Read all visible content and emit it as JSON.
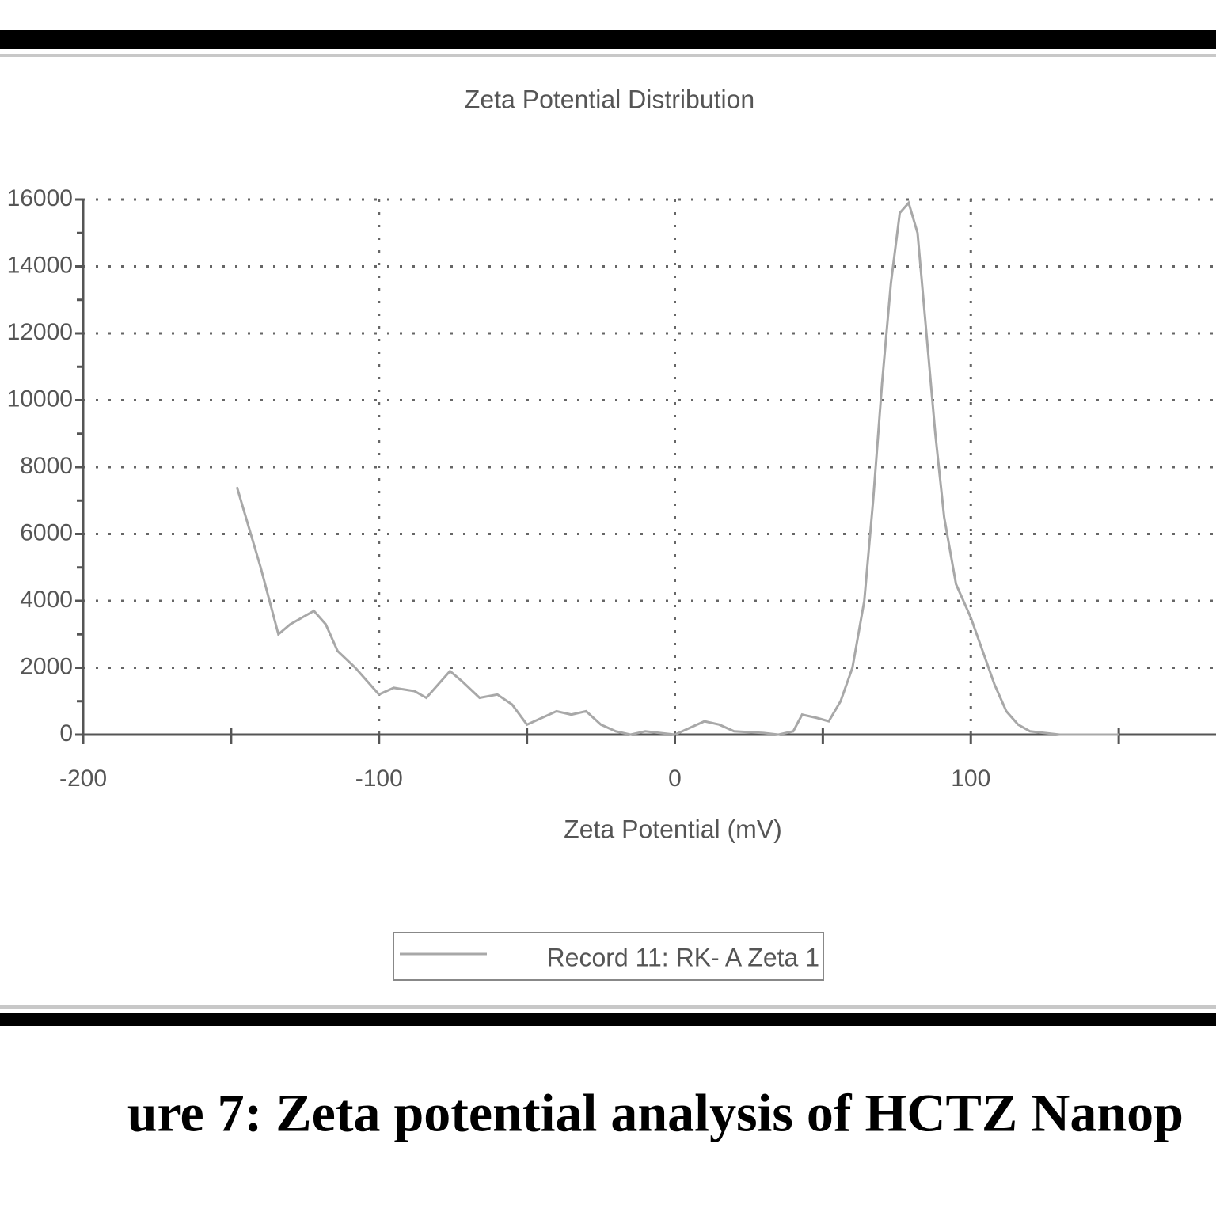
{
  "chart_data": {
    "type": "line",
    "title": "Zeta Potential Distribution",
    "x_label": "Zeta Potential (mV)",
    "x": [
      -148,
      -140,
      -134,
      -130,
      -126,
      -122,
      -118,
      -114,
      -108,
      -100,
      -95,
      -88,
      -84,
      -76,
      -72,
      -66,
      -60,
      -55,
      -50,
      -45,
      -40,
      -35,
      -30,
      -25,
      -20,
      -15,
      -10,
      -5,
      0,
      5,
      10,
      15,
      20,
      30,
      35,
      40,
      43,
      48,
      52,
      56,
      60,
      64,
      67,
      70,
      73,
      76,
      79,
      82,
      85,
      88,
      91,
      95,
      100,
      104,
      108,
      112,
      116,
      120,
      125,
      130,
      150
    ],
    "series": [
      {
        "name": "Record 11: RK- A Zeta 1",
        "color": "#a8a8a8",
        "values": [
          7400,
          5000,
          3000,
          3300,
          3500,
          3700,
          3300,
          2500,
          2000,
          1200,
          1400,
          1300,
          1100,
          1900,
          1600,
          1100,
          1200,
          900,
          300,
          500,
          700,
          600,
          700,
          300,
          100,
          0,
          100,
          50,
          0,
          200,
          400,
          300,
          100,
          50,
          0,
          100,
          600,
          500,
          400,
          1000,
          2000,
          4000,
          7000,
          10500,
          13500,
          15600,
          15900,
          15000,
          12000,
          9000,
          6500,
          4500,
          3500,
          2500,
          1500,
          700,
          300,
          100,
          50,
          0,
          0
        ]
      }
    ],
    "xlim": [
      -200,
      200
    ],
    "xticks": [
      -200,
      -100,
      0,
      100
    ],
    "xminor_ticks": [
      -150,
      -50,
      50,
      150
    ],
    "ylim": [
      0,
      16000
    ],
    "yticks": [
      0,
      2000,
      4000,
      6000,
      8000,
      10000,
      12000,
      14000,
      16000
    ],
    "grid": true,
    "caption": "ure 7: Zeta potential analysis of HCTZ Nanop"
  }
}
